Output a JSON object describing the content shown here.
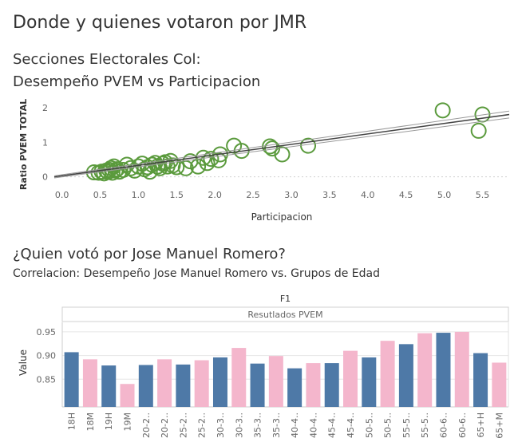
{
  "page": {
    "title": "Donde y quienes votaron por JMR",
    "section1_title_line1": "Secciones Electorales Col:",
    "section1_title_line2": "Desempeño PVEM vs Participacion",
    "section2_title": "¿Quien votó por Jose Manuel Romero?",
    "section2_subtitle": "Correlacion: Desempeño Jose Manuel Romero vs. Grupos de Edad"
  },
  "colors": {
    "point_stroke": "#5a9a3c",
    "trend_line": "#555555",
    "bar_blue": "#4e79a7",
    "bar_pink": "#f4b6cc",
    "grid": "#e6e6e6"
  },
  "chart_data": [
    {
      "type": "scatter",
      "title": "",
      "xlabel": "Participacion",
      "ylabel": "Ratio PVEM TOTAL",
      "xlim": [
        -0.1,
        5.85
      ],
      "ylim": [
        -0.1,
        2.25
      ],
      "xticks": [
        "0.0",
        "0.5",
        "1.0",
        "1.5",
        "2.0",
        "2.5",
        "3.0",
        "3.5",
        "4.0",
        "4.5",
        "5.0",
        "5.5"
      ],
      "xtick_values": [
        0,
        0.5,
        1,
        1.5,
        2,
        2.5,
        3,
        3.5,
        4,
        4.5,
        5,
        5.5
      ],
      "yticks": [
        "0",
        "1",
        "2"
      ],
      "ytick_values": [
        0,
        1,
        2
      ],
      "points": [
        {
          "x": 0.42,
          "y": 0.13
        },
        {
          "x": 0.48,
          "y": 0.12
        },
        {
          "x": 0.52,
          "y": 0.15
        },
        {
          "x": 0.55,
          "y": 0.1
        },
        {
          "x": 0.58,
          "y": 0.18
        },
        {
          "x": 0.6,
          "y": 0.14
        },
        {
          "x": 0.62,
          "y": 0.2
        },
        {
          "x": 0.64,
          "y": 0.25
        },
        {
          "x": 0.66,
          "y": 0.12
        },
        {
          "x": 0.68,
          "y": 0.3
        },
        {
          "x": 0.7,
          "y": 0.18
        },
        {
          "x": 0.72,
          "y": 0.22
        },
        {
          "x": 0.75,
          "y": 0.15
        },
        {
          "x": 0.8,
          "y": 0.2
        },
        {
          "x": 0.85,
          "y": 0.35
        },
        {
          "x": 0.9,
          "y": 0.25
        },
        {
          "x": 0.95,
          "y": 0.18
        },
        {
          "x": 1.0,
          "y": 0.3
        },
        {
          "x": 1.05,
          "y": 0.38
        },
        {
          "x": 1.08,
          "y": 0.22
        },
        {
          "x": 1.12,
          "y": 0.28
        },
        {
          "x": 1.15,
          "y": 0.15
        },
        {
          "x": 1.18,
          "y": 0.35
        },
        {
          "x": 1.22,
          "y": 0.4
        },
        {
          "x": 1.25,
          "y": 0.3
        },
        {
          "x": 1.28,
          "y": 0.25
        },
        {
          "x": 1.32,
          "y": 0.38
        },
        {
          "x": 1.35,
          "y": 0.42
        },
        {
          "x": 1.38,
          "y": 0.3
        },
        {
          "x": 1.42,
          "y": 0.46
        },
        {
          "x": 1.45,
          "y": 0.33
        },
        {
          "x": 1.5,
          "y": 0.28
        },
        {
          "x": 1.62,
          "y": 0.25
        },
        {
          "x": 1.68,
          "y": 0.45
        },
        {
          "x": 1.78,
          "y": 0.3
        },
        {
          "x": 1.85,
          "y": 0.55
        },
        {
          "x": 1.9,
          "y": 0.4
        },
        {
          "x": 1.95,
          "y": 0.52
        },
        {
          "x": 2.05,
          "y": 0.48
        },
        {
          "x": 2.07,
          "y": 0.65
        },
        {
          "x": 2.25,
          "y": 0.9
        },
        {
          "x": 2.35,
          "y": 0.75
        },
        {
          "x": 2.72,
          "y": 0.88
        },
        {
          "x": 2.75,
          "y": 0.82
        },
        {
          "x": 2.88,
          "y": 0.65
        },
        {
          "x": 3.22,
          "y": 0.9
        },
        {
          "x": 4.98,
          "y": 1.92
        },
        {
          "x": 5.45,
          "y": 1.33
        },
        {
          "x": 5.5,
          "y": 1.8
        }
      ],
      "trend_lines": [
        {
          "x0": -0.1,
          "y0": -0.03,
          "x1": 5.85,
          "y1": 1.7
        },
        {
          "x0": -0.1,
          "y0": 0.0,
          "x1": 5.85,
          "y1": 1.8
        },
        {
          "x0": -0.1,
          "y0": 0.03,
          "x1": 5.85,
          "y1": 1.9
        }
      ]
    },
    {
      "type": "bar",
      "title": "F1",
      "header_label": "Resutlados PVEM",
      "xlabel": "",
      "ylabel": "Value",
      "ylim": [
        0.8,
        0.97
      ],
      "yticks": [
        "0.85",
        "0.90",
        "0.95"
      ],
      "ytick_values": [
        0.85,
        0.9,
        0.95
      ],
      "categories": [
        "18H",
        "18M",
        "19H",
        "19M",
        "20-2..",
        "20-2..",
        "25-2..",
        "25-2..",
        "30-3..",
        "30-3..",
        "35-3..",
        "35-3..",
        "40-4..",
        "40-4..",
        "45-4..",
        "45-4..",
        "50-5..",
        "50-5..",
        "55-5..",
        "55-5..",
        "60-6..",
        "60-6..",
        "65+H",
        "65+M"
      ],
      "values": [
        0.907,
        0.892,
        0.879,
        0.84,
        0.88,
        0.892,
        0.881,
        0.89,
        0.896,
        0.916,
        0.883,
        0.899,
        0.873,
        0.884,
        0.884,
        0.91,
        0.896,
        0.931,
        0.924,
        0.947,
        0.948,
        0.95,
        0.905,
        0.885
      ],
      "colors": [
        "blue",
        "pink",
        "blue",
        "pink",
        "blue",
        "pink",
        "blue",
        "pink",
        "blue",
        "pink",
        "blue",
        "pink",
        "blue",
        "pink",
        "blue",
        "pink",
        "blue",
        "pink",
        "blue",
        "pink",
        "blue",
        "pink",
        "blue",
        "pink"
      ]
    }
  ]
}
